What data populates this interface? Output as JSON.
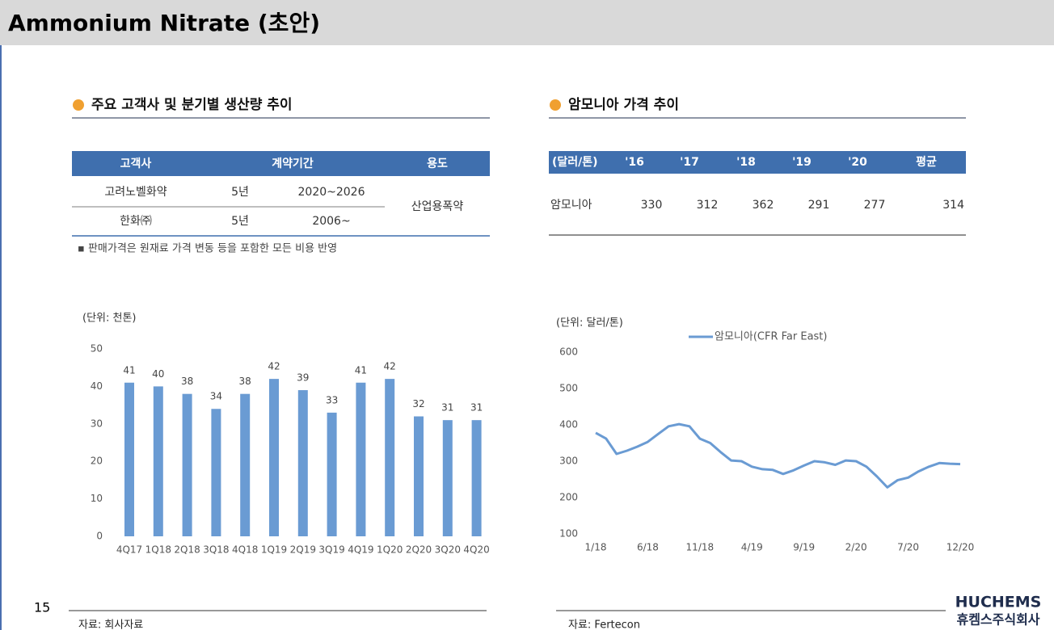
{
  "header": {
    "title": "Ammonium Nitrate (초안)"
  },
  "left": {
    "heading": "주요 고객사 및 분기별 생산량 추이",
    "table": {
      "columns": [
        "고객사",
        "계약기간",
        "용도"
      ],
      "rows": [
        [
          "고려노벨화약",
          "5년",
          "2020~2026"
        ],
        [
          "한화㈜",
          "5년",
          "2006~"
        ]
      ],
      "usage": "산업용폭약"
    },
    "note": "▪ 판매가격은 원재료 가격 변동 등을 포함한 모든 비용 반영",
    "source": "자료: 회사자료"
  },
  "right": {
    "heading": "암모니아 가격 추이",
    "table": {
      "columns": [
        "(달러/톤)",
        "'16",
        "'17",
        "'18",
        "'19",
        "'20",
        "평균"
      ],
      "rows": [
        [
          "암모니아",
          330,
          312,
          362,
          291,
          277,
          314
        ]
      ]
    },
    "source": "자료: Fertecon"
  },
  "chart_data": [
    {
      "type": "bar",
      "unit_label": "(단위: 천톤)",
      "categories": [
        "4Q17",
        "1Q18",
        "2Q18",
        "3Q18",
        "4Q18",
        "1Q19",
        "2Q19",
        "3Q19",
        "4Q19",
        "1Q20",
        "2Q20",
        "3Q20",
        "4Q20"
      ],
      "values": [
        41,
        40,
        38,
        34,
        38,
        42,
        39,
        33,
        41,
        42,
        32,
        31,
        31
      ],
      "color": "#6a9bd3",
      "ylim": [
        0,
        50
      ],
      "yticks": [
        0,
        10,
        20,
        30,
        40,
        50
      ]
    },
    {
      "type": "line",
      "unit_label": "(단위: 달러/톤)",
      "categories": [
        "1/18",
        null,
        null,
        null,
        null,
        "6/18",
        null,
        null,
        null,
        null,
        "11/18",
        null,
        null,
        null,
        null,
        "4/19",
        null,
        null,
        null,
        null,
        "9/19",
        null,
        null,
        null,
        null,
        "2/20",
        null,
        null,
        null,
        null,
        "7/20",
        null,
        null,
        null,
        null,
        "12/20"
      ],
      "series": [
        {
          "name": "암모니아(CFR Far East)",
          "color": "#6a9bd3",
          "values": [
            378,
            362,
            320,
            329,
            340,
            353,
            375,
            396,
            402,
            396,
            362,
            350,
            325,
            302,
            300,
            285,
            278,
            276,
            265,
            275,
            288,
            300,
            297,
            290,
            302,
            300,
            285,
            258,
            228,
            248,
            255,
            272,
            285,
            295,
            293,
            292
          ]
        }
      ],
      "ylim": [
        100,
        600
      ],
      "yticks": [
        100,
        200,
        300,
        400,
        500,
        600
      ],
      "legend": "top"
    }
  ],
  "footer": {
    "page": "15",
    "logo": "HUCHEMS",
    "company": "휴켐스주식회사"
  }
}
